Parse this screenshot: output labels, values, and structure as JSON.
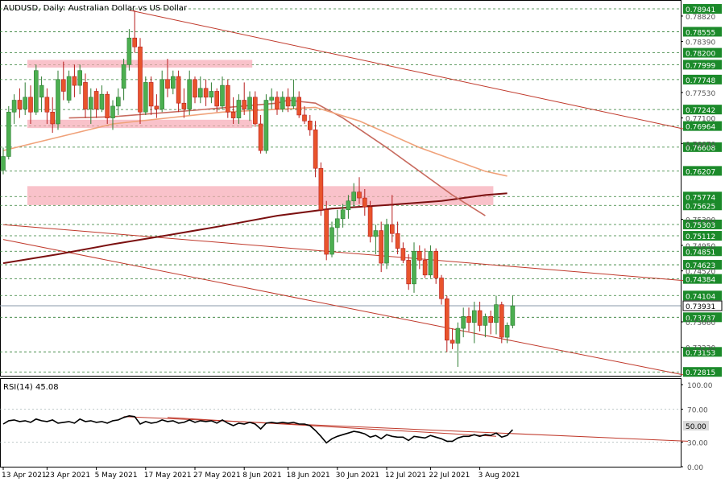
{
  "chart_data": {
    "type": "candlestick",
    "symbol_title": "AUDUSD, Daily:  Australian Dollar vs US Dollar",
    "colors": {
      "bull": "#4caf50",
      "bear": "#e8542c",
      "bull_outline": "#2e7d32",
      "bear_outline": "#b71c1c"
    },
    "x_labels": [
      "13 Apr 2021",
      "23 Apr 2021",
      "5 May 2021",
      "17 May 2021",
      "27 May 2021",
      "8 Jun 2021",
      "18 Jun 2021",
      "30 Jun 2021",
      "12 Jul 2021",
      "22 Jul 2021",
      "3 Aug 2021"
    ],
    "y_range": [
      0.7275,
      0.7905
    ],
    "plain_ticks": [
      "0.78820",
      "0.78390",
      "0.77530",
      "0.77100",
      "0.76670",
      "0.75390",
      "0.74950",
      "0.74520",
      "0.73660",
      "0.73230"
    ],
    "level_lines": [
      {
        "value": 0.78941,
        "label": "0.78941",
        "style": "box"
      },
      {
        "value": 0.78555,
        "label": "0.78555",
        "style": "box"
      },
      {
        "value": 0.782,
        "label": "0.78200",
        "style": "box"
      },
      {
        "value": 0.77999,
        "label": "0.77999",
        "style": "box"
      },
      {
        "value": 0.77748,
        "label": "0.77748",
        "style": "box"
      },
      {
        "value": 0.77242,
        "label": "0.77242",
        "style": "box"
      },
      {
        "value": 0.76964,
        "label": "0.76964",
        "style": "box"
      },
      {
        "value": 0.76608,
        "label": "0.76608",
        "style": "box"
      },
      {
        "value": 0.76207,
        "label": "0.76207",
        "style": "box"
      },
      {
        "value": 0.75774,
        "label": "0.75774",
        "style": "box"
      },
      {
        "value": 0.75625,
        "label": "0.75625",
        "style": "box"
      },
      {
        "value": 0.75303,
        "label": "0.75303",
        "style": "box"
      },
      {
        "value": 0.75112,
        "label": "0.75112",
        "style": "box"
      },
      {
        "value": 0.74851,
        "label": "0.74851",
        "style": "box"
      },
      {
        "value": 0.74623,
        "label": "0.74623",
        "style": "box"
      },
      {
        "value": 0.74384,
        "label": "0.74384",
        "style": "box"
      },
      {
        "value": 0.74104,
        "label": "0.74104",
        "style": "box"
      },
      {
        "value": 0.73931,
        "label": "0.73931",
        "style": "current"
      },
      {
        "value": 0.73737,
        "label": "0.73737",
        "style": "box"
      },
      {
        "value": 0.73153,
        "label": "0.73153",
        "style": "box"
      },
      {
        "value": 0.72815,
        "label": "0.72815",
        "style": "box"
      }
    ],
    "zones": [
      {
        "from": 0.7795,
        "to": 0.7808,
        "start": "13 Apr 2021",
        "end": "8 Jun 2021"
      },
      {
        "from": 0.7693,
        "to": 0.7707,
        "start": "13 Apr 2021",
        "end": "8 Jun 2021"
      },
      {
        "from": 0.7563,
        "to": 0.7595,
        "start": "13 Apr 2021",
        "end": "30 Jul 2021"
      }
    ],
    "candles": [
      {
        "o": 0.7622,
        "h": 0.766,
        "l": 0.7615,
        "c": 0.7645
      },
      {
        "o": 0.7645,
        "h": 0.773,
        "l": 0.764,
        "c": 0.772
      },
      {
        "o": 0.772,
        "h": 0.775,
        "l": 0.77,
        "c": 0.774
      },
      {
        "o": 0.774,
        "h": 0.776,
        "l": 0.771,
        "c": 0.7725
      },
      {
        "o": 0.7725,
        "h": 0.777,
        "l": 0.7715,
        "c": 0.7745
      },
      {
        "o": 0.7745,
        "h": 0.7765,
        "l": 0.77,
        "c": 0.772
      },
      {
        "o": 0.772,
        "h": 0.78,
        "l": 0.7715,
        "c": 0.779
      },
      {
        "o": 0.7745,
        "h": 0.778,
        "l": 0.772,
        "c": 0.7765
      },
      {
        "o": 0.7745,
        "h": 0.776,
        "l": 0.77,
        "c": 0.772
      },
      {
        "o": 0.772,
        "h": 0.7745,
        "l": 0.7685,
        "c": 0.77
      },
      {
        "o": 0.77,
        "h": 0.779,
        "l": 0.769,
        "c": 0.7775
      },
      {
        "o": 0.7775,
        "h": 0.7805,
        "l": 0.774,
        "c": 0.7755
      },
      {
        "o": 0.774,
        "h": 0.779,
        "l": 0.7735,
        "c": 0.778
      },
      {
        "o": 0.778,
        "h": 0.78,
        "l": 0.7745,
        "c": 0.7765
      },
      {
        "o": 0.7765,
        "h": 0.78,
        "l": 0.775,
        "c": 0.779
      },
      {
        "o": 0.777,
        "h": 0.7785,
        "l": 0.771,
        "c": 0.7725
      },
      {
        "o": 0.7725,
        "h": 0.776,
        "l": 0.77,
        "c": 0.7745
      },
      {
        "o": 0.7755,
        "h": 0.776,
        "l": 0.771,
        "c": 0.7725
      },
      {
        "o": 0.7725,
        "h": 0.7765,
        "l": 0.772,
        "c": 0.775
      },
      {
        "o": 0.775,
        "h": 0.7755,
        "l": 0.77,
        "c": 0.771
      },
      {
        "o": 0.771,
        "h": 0.774,
        "l": 0.769,
        "c": 0.773
      },
      {
        "o": 0.773,
        "h": 0.776,
        "l": 0.7715,
        "c": 0.7745
      },
      {
        "o": 0.776,
        "h": 0.781,
        "l": 0.774,
        "c": 0.78
      },
      {
        "o": 0.78,
        "h": 0.786,
        "l": 0.779,
        "c": 0.7845
      },
      {
        "o": 0.7845,
        "h": 0.7892,
        "l": 0.782,
        "c": 0.783
      },
      {
        "o": 0.783,
        "h": 0.7845,
        "l": 0.77,
        "c": 0.772
      },
      {
        "o": 0.772,
        "h": 0.778,
        "l": 0.7715,
        "c": 0.777
      },
      {
        "o": 0.777,
        "h": 0.778,
        "l": 0.7715,
        "c": 0.773
      },
      {
        "o": 0.773,
        "h": 0.775,
        "l": 0.771,
        "c": 0.7725
      },
      {
        "o": 0.7725,
        "h": 0.779,
        "l": 0.772,
        "c": 0.7775
      },
      {
        "o": 0.7775,
        "h": 0.781,
        "l": 0.7745,
        "c": 0.776
      },
      {
        "o": 0.776,
        "h": 0.779,
        "l": 0.775,
        "c": 0.778
      },
      {
        "o": 0.778,
        "h": 0.779,
        "l": 0.772,
        "c": 0.7735
      },
      {
        "o": 0.7735,
        "h": 0.776,
        "l": 0.771,
        "c": 0.7725
      },
      {
        "o": 0.7725,
        "h": 0.779,
        "l": 0.7715,
        "c": 0.7775
      },
      {
        "o": 0.7775,
        "h": 0.778,
        "l": 0.7735,
        "c": 0.7745
      },
      {
        "o": 0.7745,
        "h": 0.778,
        "l": 0.7735,
        "c": 0.776
      },
      {
        "o": 0.776,
        "h": 0.7775,
        "l": 0.773,
        "c": 0.7745
      },
      {
        "o": 0.7745,
        "h": 0.777,
        "l": 0.7735,
        "c": 0.7755
      },
      {
        "o": 0.7755,
        "h": 0.776,
        "l": 0.772,
        "c": 0.773
      },
      {
        "o": 0.773,
        "h": 0.778,
        "l": 0.7725,
        "c": 0.7765
      },
      {
        "o": 0.7765,
        "h": 0.7775,
        "l": 0.771,
        "c": 0.772
      },
      {
        "o": 0.772,
        "h": 0.7745,
        "l": 0.77,
        "c": 0.771
      },
      {
        "o": 0.771,
        "h": 0.775,
        "l": 0.77,
        "c": 0.774
      },
      {
        "o": 0.774,
        "h": 0.777,
        "l": 0.7715,
        "c": 0.7725
      },
      {
        "o": 0.7725,
        "h": 0.7755,
        "l": 0.7705,
        "c": 0.7745
      },
      {
        "o": 0.7745,
        "h": 0.7755,
        "l": 0.7695,
        "c": 0.77
      },
      {
        "o": 0.77,
        "h": 0.7715,
        "l": 0.765,
        "c": 0.7655
      },
      {
        "o": 0.7655,
        "h": 0.775,
        "l": 0.765,
        "c": 0.774
      },
      {
        "o": 0.774,
        "h": 0.776,
        "l": 0.7725,
        "c": 0.7745
      },
      {
        "o": 0.7745,
        "h": 0.7755,
        "l": 0.7715,
        "c": 0.7725
      },
      {
        "o": 0.7725,
        "h": 0.7755,
        "l": 0.772,
        "c": 0.7745
      },
      {
        "o": 0.7745,
        "h": 0.776,
        "l": 0.772,
        "c": 0.773
      },
      {
        "o": 0.773,
        "h": 0.7775,
        "l": 0.7725,
        "c": 0.7745
      },
      {
        "o": 0.7745,
        "h": 0.7755,
        "l": 0.771,
        "c": 0.7715
      },
      {
        "o": 0.7715,
        "h": 0.773,
        "l": 0.77,
        "c": 0.7705
      },
      {
        "o": 0.7705,
        "h": 0.7715,
        "l": 0.768,
        "c": 0.769
      },
      {
        "o": 0.769,
        "h": 0.7705,
        "l": 0.761,
        "c": 0.7625
      },
      {
        "o": 0.7625,
        "h": 0.7635,
        "l": 0.7545,
        "c": 0.7555
      },
      {
        "o": 0.7555,
        "h": 0.757,
        "l": 0.747,
        "c": 0.748
      },
      {
        "o": 0.748,
        "h": 0.7535,
        "l": 0.7475,
        "c": 0.7525
      },
      {
        "o": 0.7525,
        "h": 0.7555,
        "l": 0.75,
        "c": 0.754
      },
      {
        "o": 0.754,
        "h": 0.7565,
        "l": 0.7525,
        "c": 0.7555
      },
      {
        "o": 0.7555,
        "h": 0.758,
        "l": 0.754,
        "c": 0.757
      },
      {
        "o": 0.757,
        "h": 0.76,
        "l": 0.756,
        "c": 0.7585
      },
      {
        "o": 0.7585,
        "h": 0.761,
        "l": 0.7565,
        "c": 0.7575
      },
      {
        "o": 0.7575,
        "h": 0.759,
        "l": 0.7545,
        "c": 0.756
      },
      {
        "o": 0.756,
        "h": 0.757,
        "l": 0.75,
        "c": 0.751
      },
      {
        "o": 0.751,
        "h": 0.753,
        "l": 0.748,
        "c": 0.752
      },
      {
        "o": 0.752,
        "h": 0.7535,
        "l": 0.745,
        "c": 0.7465
      },
      {
        "o": 0.7465,
        "h": 0.754,
        "l": 0.7455,
        "c": 0.753
      },
      {
        "o": 0.753,
        "h": 0.758,
        "l": 0.75,
        "c": 0.7515
      },
      {
        "o": 0.7515,
        "h": 0.7535,
        "l": 0.748,
        "c": 0.749
      },
      {
        "o": 0.749,
        "h": 0.75,
        "l": 0.7465,
        "c": 0.747
      },
      {
        "o": 0.747,
        "h": 0.748,
        "l": 0.742,
        "c": 0.743
      },
      {
        "o": 0.743,
        "h": 0.75,
        "l": 0.7415,
        "c": 0.7485
      },
      {
        "o": 0.7485,
        "h": 0.7495,
        "l": 0.7455,
        "c": 0.747
      },
      {
        "o": 0.747,
        "h": 0.749,
        "l": 0.744,
        "c": 0.7445
      },
      {
        "o": 0.7445,
        "h": 0.7495,
        "l": 0.744,
        "c": 0.7485
      },
      {
        "o": 0.7485,
        "h": 0.749,
        "l": 0.743,
        "c": 0.744
      },
      {
        "o": 0.744,
        "h": 0.7445,
        "l": 0.7395,
        "c": 0.7405
      },
      {
        "o": 0.7405,
        "h": 0.741,
        "l": 0.7315,
        "c": 0.7335
      },
      {
        "o": 0.7335,
        "h": 0.7355,
        "l": 0.732,
        "c": 0.733
      },
      {
        "o": 0.733,
        "h": 0.7365,
        "l": 0.729,
        "c": 0.7355
      },
      {
        "o": 0.7355,
        "h": 0.739,
        "l": 0.734,
        "c": 0.7375
      },
      {
        "o": 0.7375,
        "h": 0.739,
        "l": 0.735,
        "c": 0.7365
      },
      {
        "o": 0.7365,
        "h": 0.74,
        "l": 0.733,
        "c": 0.7385
      },
      {
        "o": 0.7385,
        "h": 0.74,
        "l": 0.735,
        "c": 0.736
      },
      {
        "o": 0.736,
        "h": 0.738,
        "l": 0.734,
        "c": 0.7375
      },
      {
        "o": 0.7375,
        "h": 0.7385,
        "l": 0.7345,
        "c": 0.7365
      },
      {
        "o": 0.7365,
        "h": 0.741,
        "l": 0.7345,
        "c": 0.7395
      },
      {
        "o": 0.7395,
        "h": 0.74,
        "l": 0.733,
        "c": 0.734
      },
      {
        "o": 0.734,
        "h": 0.7365,
        "l": 0.733,
        "c": 0.736
      },
      {
        "o": 0.736,
        "h": 0.741,
        "l": 0.7355,
        "c": 0.7393
      }
    ],
    "ma_fast": [
      [
        0,
        0.7655
      ],
      [
        20,
        0.77
      ],
      [
        40,
        0.772
      ],
      [
        57,
        0.7728
      ],
      [
        65,
        0.7705
      ],
      [
        76,
        0.766
      ],
      [
        88,
        0.762
      ],
      [
        92,
        0.7612
      ]
    ],
    "ma_mid": [
      [
        12,
        0.771
      ],
      [
        20,
        0.7712
      ],
      [
        35,
        0.7723
      ],
      [
        50,
        0.7735
      ],
      [
        52,
        0.774
      ],
      [
        57,
        0.7735
      ],
      [
        62,
        0.771
      ],
      [
        70,
        0.766
      ],
      [
        76,
        0.762
      ],
      [
        82,
        0.758
      ],
      [
        88,
        0.7545
      ]
    ],
    "ma_slow": [
      [
        0,
        0.7465
      ],
      [
        10,
        0.748
      ],
      [
        20,
        0.7497
      ],
      [
        30,
        0.7512
      ],
      [
        40,
        0.7528
      ],
      [
        50,
        0.7545
      ],
      [
        60,
        0.7557
      ],
      [
        70,
        0.7563
      ],
      [
        80,
        0.757
      ],
      [
        88,
        0.758
      ],
      [
        92,
        0.7583
      ]
    ],
    "trendlines": [
      {
        "from": [
          23,
          0.7892
        ],
        "to": [
          125,
          0.769
        ]
      },
      {
        "from": [
          0,
          0.753
        ],
        "to": [
          125,
          0.7435
        ]
      },
      {
        "from": [
          0,
          0.7505
        ],
        "to": [
          125,
          0.7275
        ]
      }
    ],
    "rsi": {
      "label": "RSI(14) 45.08",
      "range": [
        0,
        100
      ],
      "ticks": [
        "100.00",
        "70.00",
        "30.00",
        "0.00"
      ],
      "level_box": "50.00",
      "values": [
        52,
        56,
        57,
        55,
        56,
        54,
        58,
        56,
        55,
        57,
        53,
        54,
        55,
        53,
        58,
        55,
        56,
        54,
        55,
        53,
        56,
        57,
        60,
        62,
        61,
        52,
        55,
        53,
        54,
        57,
        55,
        56,
        53,
        54,
        57,
        54,
        56,
        55,
        56,
        53,
        57,
        53,
        50,
        53,
        52,
        54,
        52,
        46,
        53,
        54,
        53,
        54,
        53,
        54,
        52,
        52,
        50,
        44,
        37,
        29,
        34,
        37,
        39,
        41,
        43,
        42,
        40,
        36,
        38,
        34,
        39,
        37,
        36,
        36,
        32,
        37,
        36,
        35,
        38,
        36,
        34,
        31,
        31,
        35,
        37,
        37,
        39,
        37,
        39,
        38,
        41,
        36,
        38,
        45
      ],
      "trendlines": [
        {
          "from": [
            22,
            61
          ],
          "to": [
            125,
            31
          ]
        },
        {
          "from": [
            30,
            60
          ],
          "to": [
            90,
            37
          ]
        }
      ]
    }
  }
}
